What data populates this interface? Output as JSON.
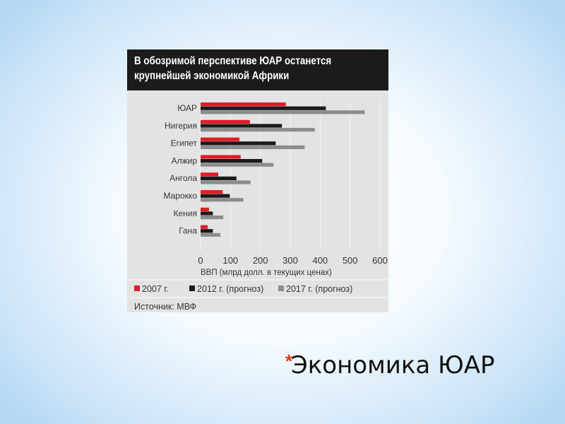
{
  "slide": {
    "title": "Экономика ЮАР",
    "bullet": "*"
  },
  "colors": {
    "s2007": "#e21c24",
    "s2012": "#1a1a1a",
    "s2017": "#8c8c8c",
    "accent": "#e0361e"
  },
  "chart_data": {
    "type": "bar",
    "orientation": "horizontal",
    "title": "В обозримой перспективе ЮАР останется крупнейшей экономикой Африки",
    "title_lines": [
      "В обозримой перспективе ЮАР останется",
      "крупнейшей экономикой Африки"
    ],
    "categories": [
      "ЮАР",
      "Нигерия",
      "Египет",
      "Алжир",
      "Ангола",
      "Марокко",
      "Кения",
      "Гана"
    ],
    "series": [
      {
        "name": "2007 г.",
        "values": [
          285,
          165,
          130,
          134,
          59,
          74,
          28,
          24
        ]
      },
      {
        "name": "2012 г. (прогноз)",
        "values": [
          419,
          272,
          251,
          206,
          120,
          98,
          41,
          41
        ]
      },
      {
        "name": "2017 г. (прогноз)",
        "values": [
          549,
          382,
          348,
          244,
          167,
          143,
          76,
          66
        ]
      }
    ],
    "xlabel": "ВВП (млрд долл. в текущих ценах)",
    "xticks": [
      "0",
      "100",
      "200",
      "300",
      "400",
      "500",
      "600"
    ],
    "xlim": [
      0,
      600
    ],
    "grid": true,
    "legend_position": "bottom",
    "source": "Источник: МВФ"
  }
}
